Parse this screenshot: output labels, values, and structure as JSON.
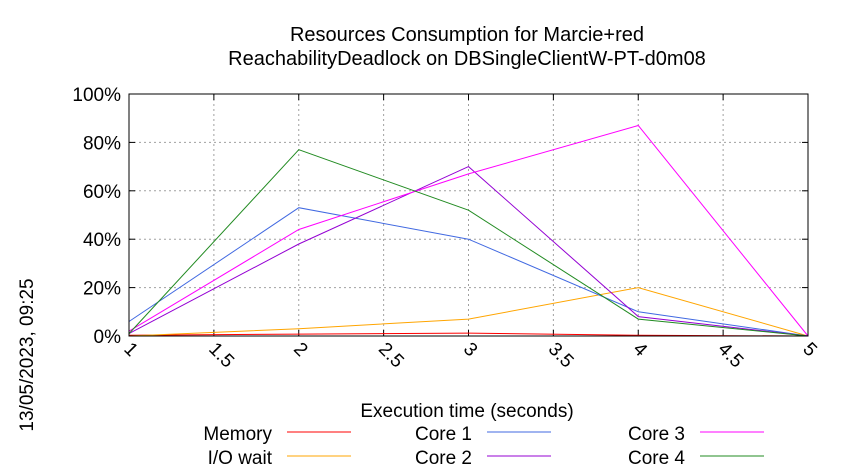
{
  "chart_data": {
    "type": "line",
    "title": "Resources Consumption for Marcie+red",
    "subtitle": "ReachabilityDeadlock on DBSingleClientW-PT-d0m08",
    "xlabel": "Execution time (seconds)",
    "ylabel": "",
    "xlim": [
      1,
      5
    ],
    "ylim": [
      0,
      100
    ],
    "x_ticks": [
      "1",
      "1.5",
      "2",
      "2.5",
      "3",
      "3.5",
      "4",
      "4.5",
      "5"
    ],
    "x_tick_values": [
      1,
      1.5,
      2,
      2.5,
      3,
      3.5,
      4,
      4.5,
      5
    ],
    "y_ticks": [
      "0%",
      "20%",
      "40%",
      "60%",
      "80%",
      "100%"
    ],
    "y_tick_values": [
      0,
      20,
      40,
      60,
      80,
      100
    ],
    "grid": true,
    "legend_position": "bottom",
    "timestamp": "13/05/2023, 09:25",
    "series": [
      {
        "name": "Memory",
        "color": "#ff0000",
        "x": [
          1,
          2,
          3,
          4,
          5
        ],
        "y": [
          0.3,
          0.8,
          1.2,
          0.3,
          0
        ]
      },
      {
        "name": "I/O wait",
        "color": "#ffa500",
        "x": [
          1,
          2,
          3,
          4,
          5
        ],
        "y": [
          0,
          3,
          7,
          20,
          0
        ]
      },
      {
        "name": "Core 1",
        "color": "#4169e1",
        "x": [
          1,
          2,
          3,
          4,
          5
        ],
        "y": [
          6,
          53,
          40,
          10,
          0
        ]
      },
      {
        "name": "Core 2",
        "color": "#9400d3",
        "x": [
          1,
          2,
          3,
          4,
          5
        ],
        "y": [
          1,
          38,
          70,
          8,
          0
        ]
      },
      {
        "name": "Core 3",
        "color": "#ff00ff",
        "x": [
          1,
          2,
          3,
          4,
          5
        ],
        "y": [
          2,
          44,
          67,
          87,
          0
        ]
      },
      {
        "name": "Core 4",
        "color": "#228b22",
        "x": [
          1,
          2,
          3,
          4,
          5
        ],
        "y": [
          1,
          77,
          52,
          7,
          0
        ]
      }
    ]
  }
}
